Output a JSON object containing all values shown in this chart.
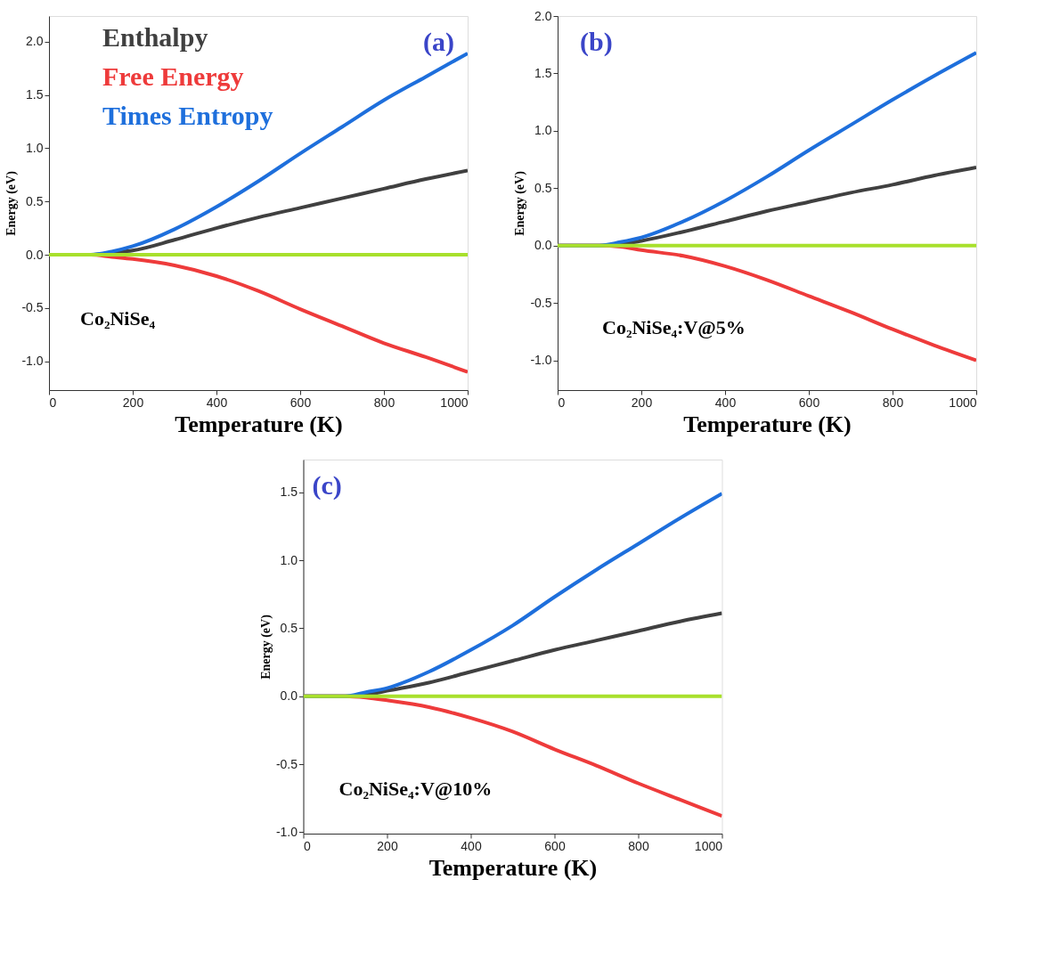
{
  "chart_data": [
    {
      "type": "line",
      "xlabel": "Temperature (K)",
      "ylabel": "Energy (eV)",
      "annotations": [
        "(a)",
        "Co₂NiSe₄"
      ],
      "legend": "top left",
      "grid": false,
      "xlim": [
        0,
        1000
      ],
      "xticks": [
        0,
        200,
        400,
        600,
        800,
        1000
      ],
      "ylim": [
        -1.27,
        2.24
      ],
      "yticks": [
        {
          "value": -1,
          "label": "-1.0"
        },
        -0.5,
        {
          "value": 0,
          "label": "0.0"
        },
        0.5,
        {
          "value": 1,
          "label": "1.0"
        },
        1.5,
        {
          "value": 2,
          "label": "2.0"
        }
      ],
      "series": [
        {
          "name": "Enthalpy",
          "color": "#404040",
          "x": [
            0,
            100,
            150,
            200,
            300,
            400,
            500,
            600,
            700,
            800,
            900,
            1000
          ],
          "values": [
            0,
            0,
            0.02,
            0.04,
            0.14,
            0.25,
            0.35,
            0.44,
            0.53,
            0.62,
            0.71,
            0.79
          ]
        },
        {
          "name": "Free Energy",
          "color": "#ee3b3b",
          "x": [
            0,
            100,
            150,
            200,
            300,
            400,
            500,
            600,
            700,
            800,
            900,
            1000
          ],
          "values": [
            0,
            0,
            -0.02,
            -0.04,
            -0.1,
            -0.2,
            -0.34,
            -0.51,
            -0.67,
            -0.83,
            -0.96,
            -1.1
          ]
        },
        {
          "name": "Times Entropy",
          "color": "#1e6fdc",
          "x": [
            0,
            100,
            150,
            200,
            300,
            400,
            500,
            600,
            700,
            800,
            900,
            1000
          ],
          "values": [
            0,
            0,
            0.03,
            0.08,
            0.24,
            0.45,
            0.69,
            0.95,
            1.2,
            1.45,
            1.67,
            1.89
          ]
        },
        {
          "color": "#a8e02c",
          "x": [
            0,
            1000
          ],
          "values": [
            0,
            0
          ]
        }
      ]
    },
    {
      "type": "line",
      "xlabel": "Temperature (K)",
      "ylabel": "Energy (eV)",
      "annotations": [
        "(b)",
        "Co₂NiSe₄:V@5%"
      ],
      "grid": false,
      "xlim": [
        0,
        1000
      ],
      "xticks": [
        0,
        200,
        400,
        600,
        800,
        1000
      ],
      "ylim": [
        -1.26,
        2.0
      ],
      "yticks": [
        {
          "value": -1,
          "label": "-1.0"
        },
        -0.5,
        {
          "value": 0,
          "label": "0.0"
        },
        0.5,
        {
          "value": 1,
          "label": "1.0"
        },
        1.5,
        {
          "value": 2,
          "label": "2.0"
        }
      ],
      "series": [
        {
          "color": "#404040",
          "x": [
            0,
            100,
            150,
            200,
            300,
            400,
            500,
            600,
            700,
            800,
            900,
            1000
          ],
          "values": [
            0,
            0,
            0.01,
            0.04,
            0.12,
            0.21,
            0.3,
            0.38,
            0.46,
            0.53,
            0.61,
            0.68
          ]
        },
        {
          "color": "#ee3b3b",
          "x": [
            0,
            100,
            150,
            200,
            300,
            400,
            500,
            600,
            700,
            800,
            900,
            1000
          ],
          "values": [
            0,
            0,
            -0.01,
            -0.04,
            -0.09,
            -0.18,
            -0.3,
            -0.44,
            -0.58,
            -0.73,
            -0.87,
            -1.0
          ]
        },
        {
          "color": "#1e6fdc",
          "x": [
            0,
            100,
            150,
            200,
            300,
            400,
            500,
            600,
            700,
            800,
            900,
            1000
          ],
          "values": [
            0,
            0,
            0.03,
            0.07,
            0.21,
            0.39,
            0.6,
            0.83,
            1.05,
            1.27,
            1.48,
            1.68
          ]
        },
        {
          "color": "#a8e02c",
          "x": [
            0,
            1000
          ],
          "values": [
            0,
            0
          ]
        }
      ]
    },
    {
      "type": "line",
      "xlabel": "Temperature (K)",
      "ylabel": "Energy (eV)",
      "annotations": [
        "(c)",
        "Co₂NiSe₄:V@10%"
      ],
      "grid": false,
      "xlim": [
        0,
        1000
      ],
      "xticks": [
        0,
        200,
        400,
        600,
        800,
        1000
      ],
      "ylim": [
        -1.01,
        1.74
      ],
      "yticks": [
        {
          "value": -1,
          "label": "-1.0"
        },
        -0.5,
        {
          "value": 0,
          "label": "0.0"
        },
        0.5,
        {
          "value": 1,
          "label": "1.0"
        },
        1.5
      ],
      "series": [
        {
          "color": "#404040",
          "x": [
            0,
            100,
            150,
            200,
            300,
            400,
            500,
            600,
            700,
            800,
            900,
            1000
          ],
          "values": [
            0,
            0,
            0.01,
            0.04,
            0.1,
            0.18,
            0.26,
            0.34,
            0.41,
            0.48,
            0.55,
            0.61
          ]
        },
        {
          "color": "#ee3b3b",
          "x": [
            0,
            100,
            150,
            200,
            300,
            400,
            500,
            600,
            700,
            800,
            900,
            1000
          ],
          "values": [
            0,
            0,
            -0.01,
            -0.03,
            -0.08,
            -0.16,
            -0.26,
            -0.39,
            -0.51,
            -0.64,
            -0.76,
            -0.88
          ]
        },
        {
          "color": "#1e6fdc",
          "x": [
            0,
            100,
            150,
            200,
            300,
            400,
            500,
            600,
            700,
            800,
            900,
            1000
          ],
          "values": [
            0,
            0,
            0.03,
            0.06,
            0.18,
            0.34,
            0.52,
            0.73,
            0.93,
            1.12,
            1.31,
            1.49
          ]
        },
        {
          "color": "#a8e02c",
          "x": [
            0,
            1000
          ],
          "values": [
            0,
            0
          ]
        }
      ]
    }
  ]
}
